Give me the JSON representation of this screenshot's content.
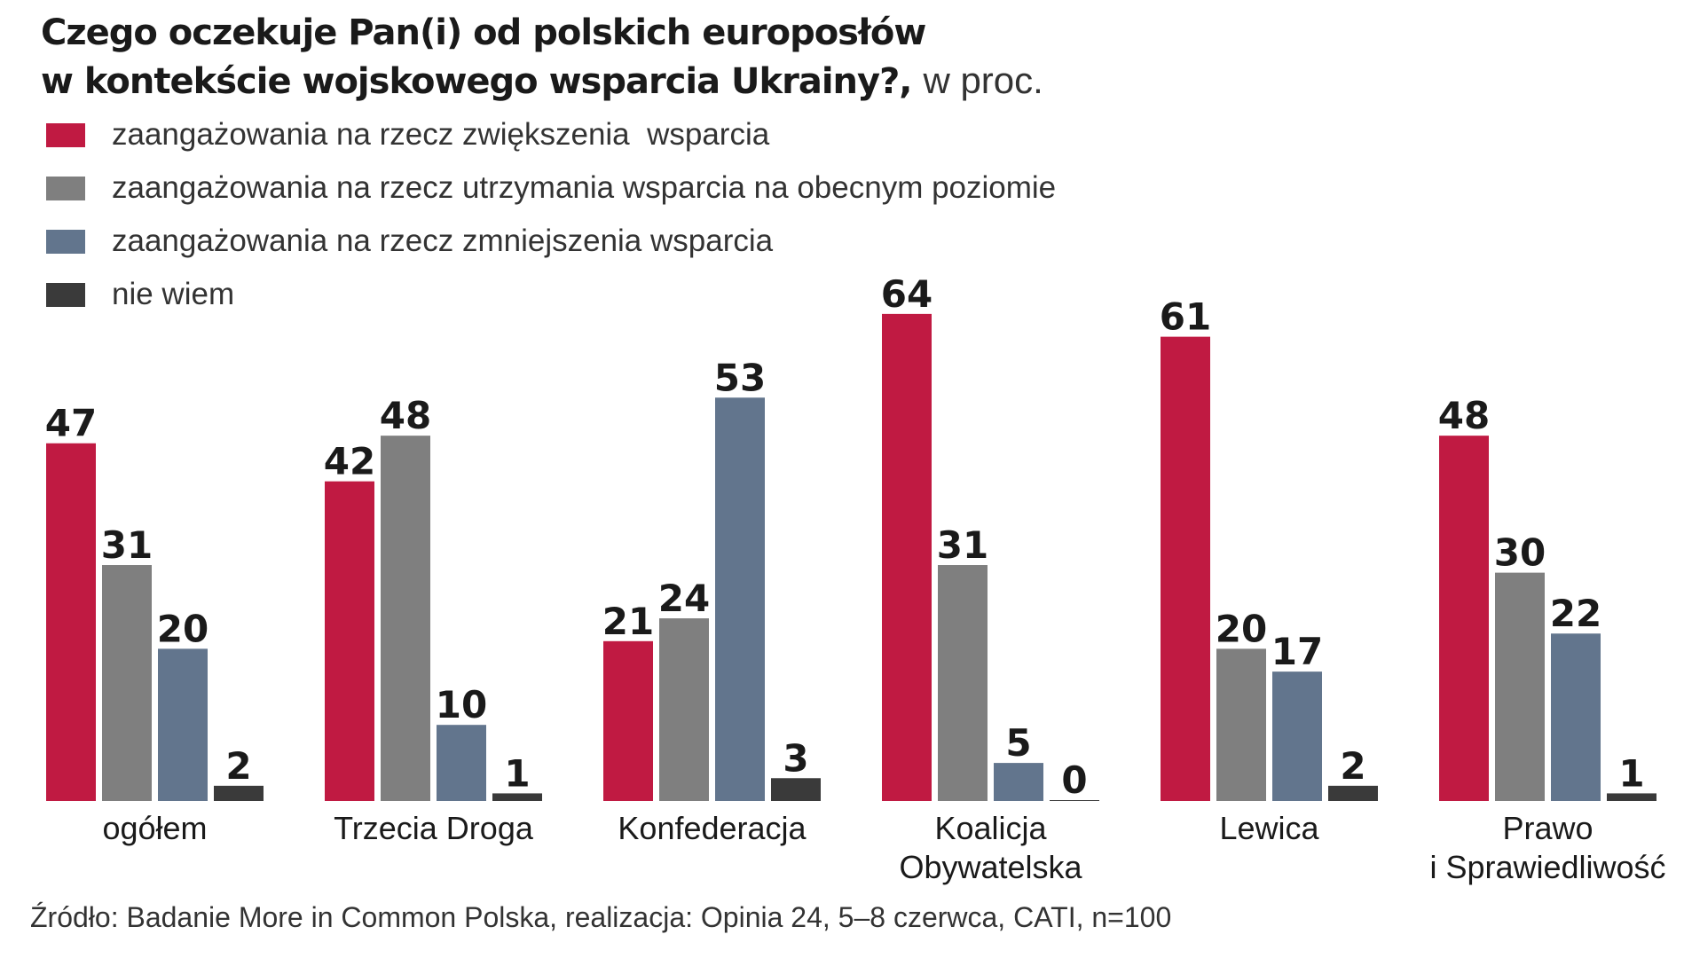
{
  "title_line1": "Czego oczekuje Pan(i) od polskich europosłów",
  "title_line2": "w kontekście wojskowego wsparcia Ukrainy?,",
  "title_unit": "w proc.",
  "source": "Źródło: Badanie More in Common Polska, realizacja: Opinia 24, 5–8 czerwca, CATI, n=100",
  "colors": {
    "red": "#c01a42",
    "gray": "#7f7f7f",
    "blue": "#62758d",
    "dark": "#3a3a3a"
  },
  "chart_data": {
    "type": "bar",
    "title": "Czego oczekuje Pan(i) od polskich europosłów w kontekście wojskowego wsparcia Ukrainy?, w proc.",
    "ylim": [
      0,
      70
    ],
    "categories": [
      [
        "ogółem"
      ],
      [
        "Trzecia Droga"
      ],
      [
        "Konfederacja"
      ],
      [
        "Koalicja",
        "Obywatelska"
      ],
      [
        "Lewica"
      ],
      [
        "Prawo",
        "i Sprawiedliwość"
      ]
    ],
    "series": [
      {
        "name": "zaangażowania na rzecz zwiększenia  wsparcia",
        "color": "#c01a42",
        "values": [
          47,
          42,
          21,
          64,
          61,
          48
        ]
      },
      {
        "name": "zaangażowania na rzecz utrzymania wsparcia na obecnym poziomie",
        "color": "#7f7f7f",
        "values": [
          31,
          48,
          24,
          31,
          20,
          30
        ]
      },
      {
        "name": "zaangażowania na rzecz zmniejszenia wsparcia",
        "color": "#62758d",
        "values": [
          20,
          10,
          53,
          5,
          17,
          22
        ]
      },
      {
        "name": "nie wiem",
        "color": "#3a3a3a",
        "values": [
          2,
          1,
          3,
          0,
          2,
          1
        ]
      }
    ]
  }
}
